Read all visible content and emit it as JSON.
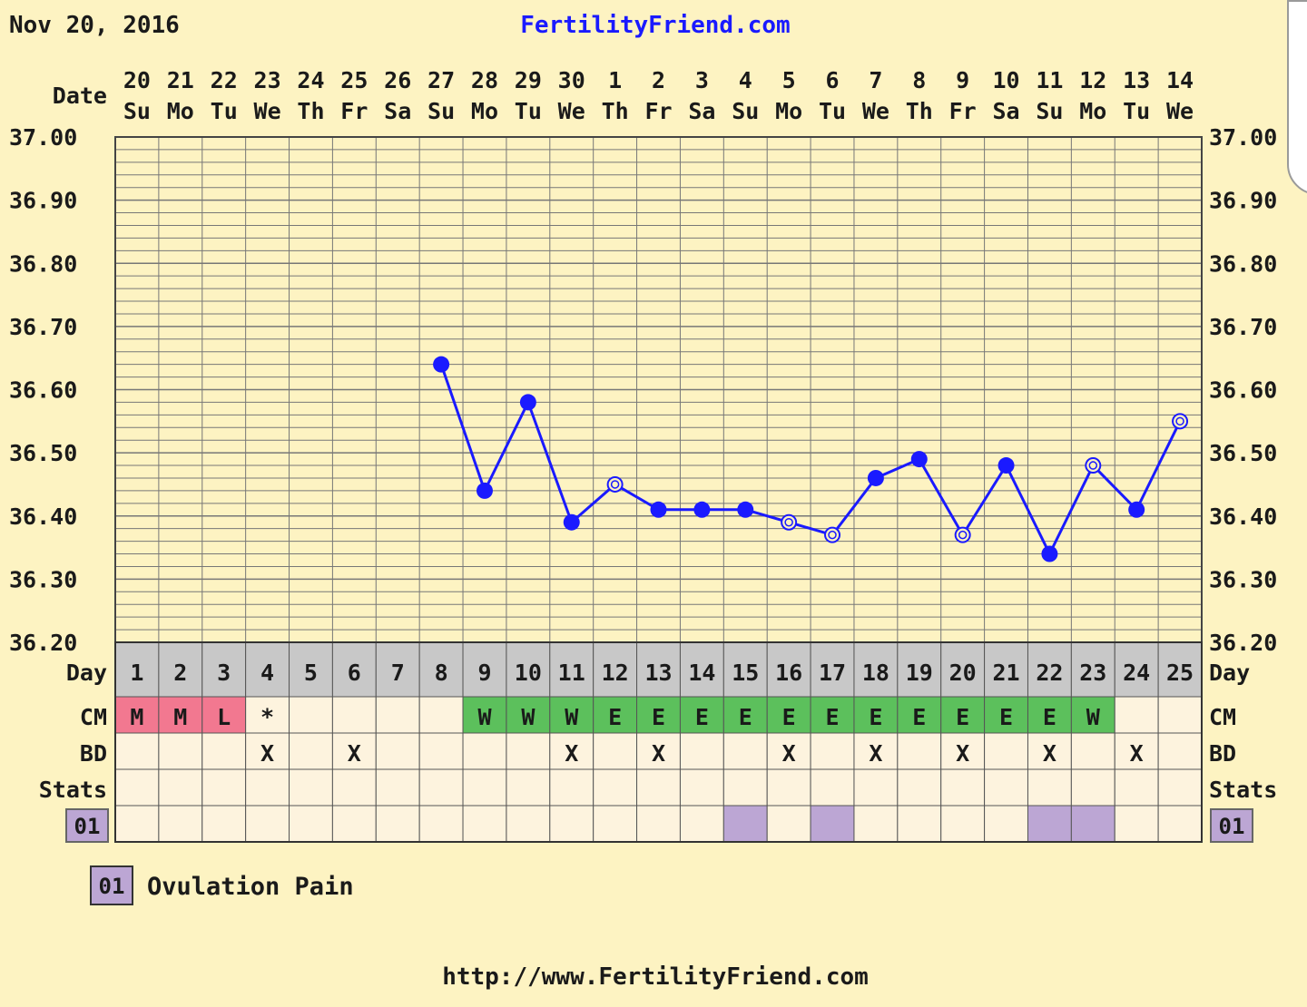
{
  "header": {
    "date": "Nov 20, 2016",
    "site": "FertilityFriend.com"
  },
  "footer": {
    "url": "http://www.FertilityFriend.com"
  },
  "row_labels": {
    "date": "Date",
    "day": "Day",
    "cm": "CM",
    "bd": "BD",
    "stats": "Stats",
    "code": "01"
  },
  "legend": {
    "code": "01",
    "text": "Ovulation Pain"
  },
  "colors": {
    "background": "#fdf3c2",
    "grid": "#777777",
    "line": "#1a1aff",
    "cm_menstrual": "#f27890",
    "cm_fertile": "#5cc05c",
    "day_row": "#c8c8c8",
    "cell": "#fdf3de",
    "stat_mark": "#bca6d4",
    "site_text": "#1a1aff"
  },
  "chart_data": {
    "type": "line",
    "ylim": [
      36.2,
      37.0
    ],
    "y_ticks": [
      "37.00",
      "36.90",
      "36.80",
      "36.70",
      "36.60",
      "36.50",
      "36.40",
      "36.30",
      "36.20"
    ],
    "dates": [
      "20",
      "21",
      "22",
      "23",
      "24",
      "25",
      "26",
      "27",
      "28",
      "29",
      "30",
      "1",
      "2",
      "3",
      "4",
      "5",
      "6",
      "7",
      "8",
      "9",
      "10",
      "11",
      "12",
      "13",
      "14"
    ],
    "weekdays": [
      "Su",
      "Mo",
      "Tu",
      "We",
      "Th",
      "Fr",
      "Sa",
      "Su",
      "Mo",
      "Tu",
      "We",
      "Th",
      "Fr",
      "Sa",
      "Su",
      "Mo",
      "Tu",
      "We",
      "Th",
      "Fr",
      "Sa",
      "Su",
      "Mo",
      "Tu",
      "We"
    ],
    "cycle_days": [
      "1",
      "2",
      "3",
      "4",
      "5",
      "6",
      "7",
      "8",
      "9",
      "10",
      "11",
      "12",
      "13",
      "14",
      "15",
      "16",
      "17",
      "18",
      "19",
      "20",
      "21",
      "22",
      "23",
      "24",
      "25"
    ],
    "temperatures": [
      null,
      null,
      null,
      null,
      null,
      null,
      null,
      36.64,
      36.44,
      36.58,
      36.39,
      36.45,
      36.41,
      36.41,
      36.41,
      36.39,
      36.37,
      36.46,
      36.49,
      36.37,
      36.48,
      36.34,
      36.48,
      36.41,
      36.55
    ],
    "open_markers": [
      false,
      false,
      false,
      false,
      false,
      false,
      false,
      false,
      false,
      false,
      false,
      true,
      false,
      false,
      false,
      true,
      true,
      false,
      false,
      true,
      false,
      false,
      true,
      false,
      true
    ],
    "cm": [
      "M",
      "M",
      "L",
      "*",
      "",
      "",
      "",
      "",
      "W",
      "W",
      "W",
      "E",
      "E",
      "E",
      "E",
      "E",
      "E",
      "E",
      "E",
      "E",
      "E",
      "E",
      "W",
      "",
      ""
    ],
    "bd": [
      "",
      "",
      "",
      "X",
      "",
      "X",
      "",
      "",
      "",
      "",
      "X",
      "",
      "X",
      "",
      "",
      "X",
      "",
      "X",
      "",
      "X",
      "",
      "X",
      "",
      "X",
      ""
    ],
    "stat_days": [
      15,
      17,
      22,
      23
    ]
  }
}
